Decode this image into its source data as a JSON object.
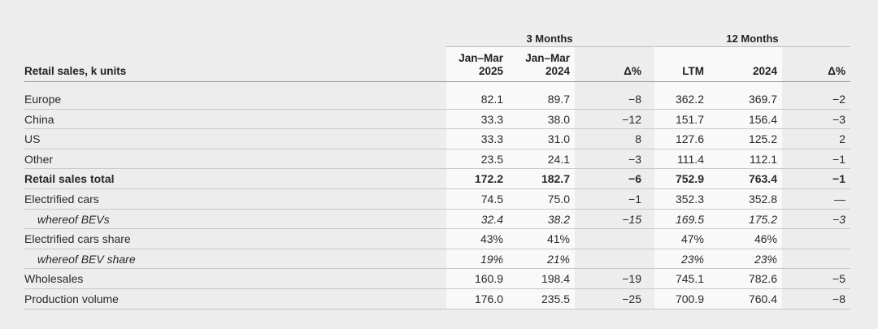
{
  "table": {
    "row_header_label": "Retail sales, k units",
    "groups": [
      "3 Months",
      "12 Months"
    ],
    "columns": [
      {
        "line1": "Jan–Mar",
        "line2": "2025"
      },
      {
        "line1": "Jan–Mar",
        "line2": "2024"
      },
      {
        "line1": "",
        "line2": "Δ%"
      },
      {
        "line1": "",
        "line2": "LTM"
      },
      {
        "line1": "",
        "line2": "2024"
      },
      {
        "line1": "",
        "line2": "Δ%"
      }
    ],
    "rows": [
      {
        "label": "Europe",
        "style": "normal",
        "values": [
          "82.1",
          "89.7",
          "−8",
          "362.2",
          "369.7",
          "−2"
        ]
      },
      {
        "label": "China",
        "style": "normal",
        "values": [
          "33.3",
          "38.0",
          "−12",
          "151.7",
          "156.4",
          "−3"
        ]
      },
      {
        "label": "US",
        "style": "normal",
        "values": [
          "33.3",
          "31.0",
          "8",
          "127.6",
          "125.2",
          "2"
        ]
      },
      {
        "label": "Other",
        "style": "normal",
        "values": [
          "23.5",
          "24.1",
          "−3",
          "111.4",
          "112.1",
          "−1"
        ]
      },
      {
        "label": "Retail sales total",
        "style": "bold",
        "values": [
          "172.2",
          "182.7",
          "−6",
          "752.9",
          "763.4",
          "−1"
        ]
      },
      {
        "label": "Electrified cars",
        "style": "normal",
        "values": [
          "74.5",
          "75.0",
          "−1",
          "352.3",
          "352.8",
          "—"
        ]
      },
      {
        "label": "whereof BEVs",
        "style": "italic",
        "values": [
          "32.4",
          "38.2",
          "−15",
          "169.5",
          "175.2",
          "−3"
        ]
      },
      {
        "label": "Electrified cars share",
        "style": "normal",
        "values": [
          "43%",
          "41%",
          "",
          "47%",
          "46%",
          ""
        ]
      },
      {
        "label": "whereof BEV share",
        "style": "italic",
        "values": [
          "19%",
          "21%",
          "",
          "23%",
          "23%",
          ""
        ]
      },
      {
        "label": "Wholesales",
        "style": "normal",
        "values": [
          "160.9",
          "198.4",
          "−19",
          "745.1",
          "782.6",
          "−5"
        ]
      },
      {
        "label": "Production volume",
        "style": "normal",
        "values": [
          "176.0",
          "235.5",
          "−25",
          "700.9",
          "760.4",
          "−8"
        ]
      }
    ]
  }
}
